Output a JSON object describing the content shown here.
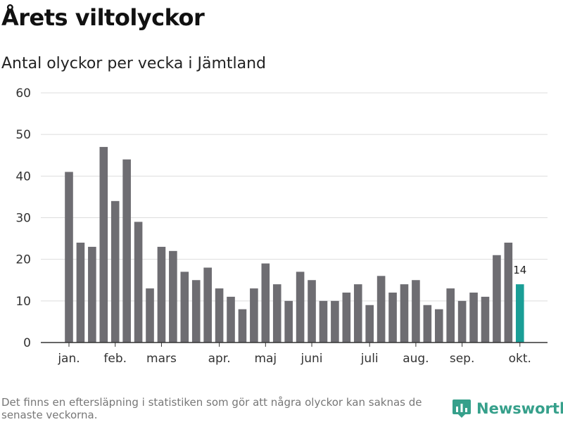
{
  "header": {
    "title": "Årets viltolyckor",
    "subtitle": "Antal olyckor per vecka i Jämtland"
  },
  "footer": {
    "note": "Det finns en eftersläpning i statistiken som gör att några olyckor kan saknas de senaste veckorna.",
    "brand": "Newsworthy"
  },
  "colors": {
    "bar": "#6e6d72",
    "highlight": "#1a9e96",
    "grid": "#dddddd",
    "axis": "#333333",
    "brand": "#36a08b"
  },
  "chart_data": {
    "type": "bar",
    "title": "Antal olyckor per vecka i Jämtland",
    "xlabel": "",
    "ylabel": "",
    "ylim": [
      0,
      60
    ],
    "yticks": [
      0,
      10,
      20,
      30,
      40,
      50,
      60
    ],
    "values": [
      41,
      24,
      23,
      47,
      34,
      44,
      29,
      13,
      23,
      22,
      17,
      15,
      18,
      13,
      11,
      8,
      13,
      19,
      14,
      10,
      17,
      15,
      10,
      10,
      12,
      14,
      9,
      16,
      12,
      14,
      15,
      9,
      8,
      13,
      10,
      12,
      11,
      21,
      24,
      14
    ],
    "highlight_index": 39,
    "highlight_label": "14",
    "month_labels": [
      {
        "label": "jan.",
        "index": 0
      },
      {
        "label": "feb.",
        "index": 4
      },
      {
        "label": "mars",
        "index": 8
      },
      {
        "label": "apr.",
        "index": 13
      },
      {
        "label": "maj",
        "index": 17
      },
      {
        "label": "juni",
        "index": 21
      },
      {
        "label": "juli",
        "index": 26
      },
      {
        "label": "aug.",
        "index": 30
      },
      {
        "label": "sep.",
        "index": 34
      },
      {
        "label": "okt.",
        "index": 39
      }
    ],
    "grid": true,
    "legend": "none"
  }
}
